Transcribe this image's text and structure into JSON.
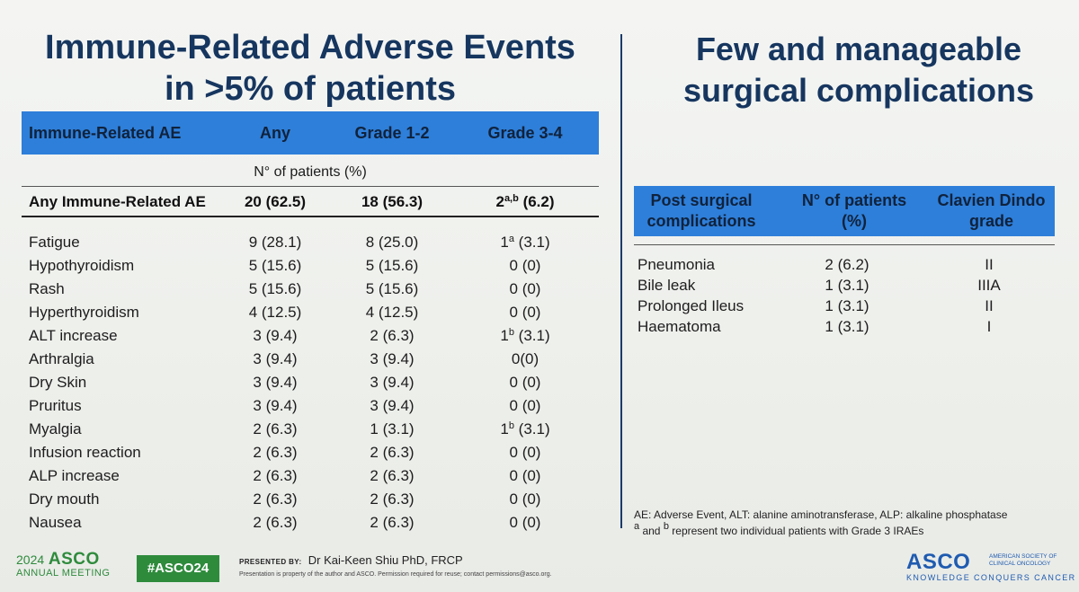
{
  "left": {
    "title_lines": [
      "Immune-Related Adverse Events",
      "in >5% of patients"
    ],
    "headers": [
      "Immune-Related AE",
      "Any",
      "Grade 1-2",
      "Grade 3-4"
    ],
    "subheader": "N° of patients (%)",
    "any_row": {
      "label": "Any Immune-Related AE",
      "any": "20 (62.5)",
      "g12": "18 (56.3)",
      "g34_num": "2",
      "g34_sup": "a,b",
      "g34_rest": " (6.2)"
    },
    "rows": [
      {
        "label": "Fatigue",
        "any": "9 (28.1)",
        "g12": "8 (25.0)",
        "g34_num": "1",
        "g34_sup": "a",
        "g34_rest": " (3.1)"
      },
      {
        "label": "Hypothyroidism",
        "any": "5 (15.6)",
        "g12": "5 (15.6)",
        "g34_num": "0 (0)",
        "g34_sup": "",
        "g34_rest": ""
      },
      {
        "label": "Rash",
        "any": "5 (15.6)",
        "g12": "5 (15.6)",
        "g34_num": "0 (0)",
        "g34_sup": "",
        "g34_rest": ""
      },
      {
        "label": "Hyperthyroidism",
        "any": "4 (12.5)",
        "g12": "4 (12.5)",
        "g34_num": "0 (0)",
        "g34_sup": "",
        "g34_rest": ""
      },
      {
        "label": "ALT increase",
        "any": "3 (9.4)",
        "g12": "2 (6.3)",
        "g34_num": "1",
        "g34_sup": "b",
        "g34_rest": " (3.1)"
      },
      {
        "label": "Arthralgia",
        "any": "3 (9.4)",
        "g12": "3 (9.4)",
        "g34_num": "0(0)",
        "g34_sup": "",
        "g34_rest": ""
      },
      {
        "label": "Dry Skin",
        "any": "3 (9.4)",
        "g12": "3 (9.4)",
        "g34_num": "0 (0)",
        "g34_sup": "",
        "g34_rest": ""
      },
      {
        "label": "Pruritus",
        "any": "3 (9.4)",
        "g12": "3 (9.4)",
        "g34_num": "0 (0)",
        "g34_sup": "",
        "g34_rest": ""
      },
      {
        "label": "Myalgia",
        "any": "2 (6.3)",
        "g12": "1 (3.1)",
        "g34_num": "1",
        "g34_sup": "b",
        "g34_rest": " (3.1)"
      },
      {
        "label": "Infusion reaction",
        "any": "2 (6.3)",
        "g12": "2 (6.3)",
        "g34_num": "0 (0)",
        "g34_sup": "",
        "g34_rest": ""
      },
      {
        "label": "ALP increase",
        "any": "2 (6.3)",
        "g12": "2 (6.3)",
        "g34_num": "0 (0)",
        "g34_sup": "",
        "g34_rest": ""
      },
      {
        "label": "Dry mouth",
        "any": "2 (6.3)",
        "g12": "2 (6.3)",
        "g34_num": "0 (0)",
        "g34_sup": "",
        "g34_rest": ""
      },
      {
        "label": "Nausea",
        "any": "2 (6.3)",
        "g12": "2 (6.3)",
        "g34_num": "0 (0)",
        "g34_sup": "",
        "g34_rest": ""
      }
    ]
  },
  "right": {
    "title_lines": [
      "Few and manageable",
      "surgical complications"
    ],
    "headers": [
      [
        "Post surgical",
        "complications"
      ],
      [
        "N° of patients",
        "(%)"
      ],
      [
        "Clavien Dindo",
        "grade"
      ]
    ],
    "rows": [
      {
        "label": "Pneumonia",
        "n": "2 (6.2)",
        "grade": "II"
      },
      {
        "label": "Bile leak",
        "n": "1 (3.1)",
        "grade": "IIIA"
      },
      {
        "label": "Prolonged Ileus",
        "n": "1 (3.1)",
        "grade": "II"
      },
      {
        "label": "Haematoma",
        "n": "1 (3.1)",
        "grade": "I"
      }
    ],
    "footnote_1": "AE: Adverse Event, ALT: alanine aminotransferase, ALP: alkaline phosphatase",
    "footnote_2_sup_a": "a",
    "footnote_2_and": " and ",
    "footnote_2_sup_b": "b",
    "footnote_2_rest": " represent two individual patients with Grade 3 IRAEs"
  },
  "footer": {
    "meeting_year": "2024",
    "meeting_name": "ASCO",
    "meeting_sub": "ANNUAL MEETING",
    "hashtag": "#ASCO24",
    "presented_label": "PRESENTED BY:",
    "presenter": "Dr Kai-Keen Shiu  PhD, FRCP",
    "disclaimer": "Presentation is property of the author and ASCO. Permission required for reuse; contact permissions@asco.org.",
    "asco_logo": "ASCO",
    "asco_org": "AMERICAN SOCIETY OF CLINICAL ONCOLOGY",
    "asco_tagline": "KNOWLEDGE CONQUERS CANCER"
  },
  "colors": {
    "header_blue": "#2e7fd9",
    "title_navy": "#16365f",
    "asco_green": "#2e8b3c",
    "asco_blue": "#1f5bb0"
  }
}
